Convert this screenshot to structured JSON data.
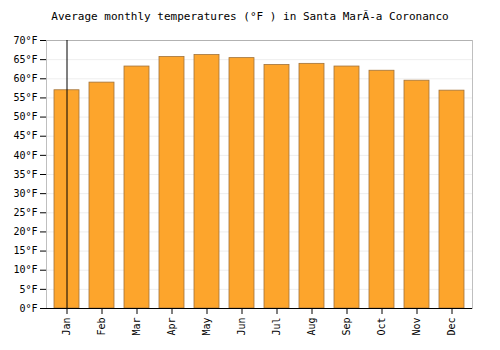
{
  "chart_data": {
    "type": "bar",
    "title": "Average monthly temperatures (°F ) in Santa MarÃ-a Coronanco",
    "categories": [
      "Jan",
      "Feb",
      "Mar",
      "Apr",
      "May",
      "Jun",
      "Jul",
      "Aug",
      "Sep",
      "Oct",
      "Nov",
      "Dec"
    ],
    "values": [
      57,
      59,
      63.2,
      65.7,
      66.2,
      65.4,
      63.6,
      63.9,
      63.2,
      62.1,
      59.5,
      56.9
    ],
    "color": "#fda52c",
    "ylim": [
      0,
      70
    ],
    "yticks": [
      {
        "value": 0,
        "label": "0°F"
      },
      {
        "value": 5,
        "label": "5°F"
      },
      {
        "value": 10,
        "label": "10°F"
      },
      {
        "value": 15,
        "label": "15°F"
      },
      {
        "value": 20,
        "label": "20°F"
      },
      {
        "value": 25,
        "label": "25°F"
      },
      {
        "value": 30,
        "label": "30°F"
      },
      {
        "value": 35,
        "label": "35°F"
      },
      {
        "value": 40,
        "label": "40°F"
      },
      {
        "value": 45,
        "label": "45°F"
      },
      {
        "value": 50,
        "label": "50°F"
      },
      {
        "value": 55,
        "label": "55°F"
      },
      {
        "value": 60,
        "label": "60°F"
      },
      {
        "value": 65,
        "label": "65°F"
      },
      {
        "value": 70,
        "label": "70°F"
      }
    ],
    "grid": true
  }
}
